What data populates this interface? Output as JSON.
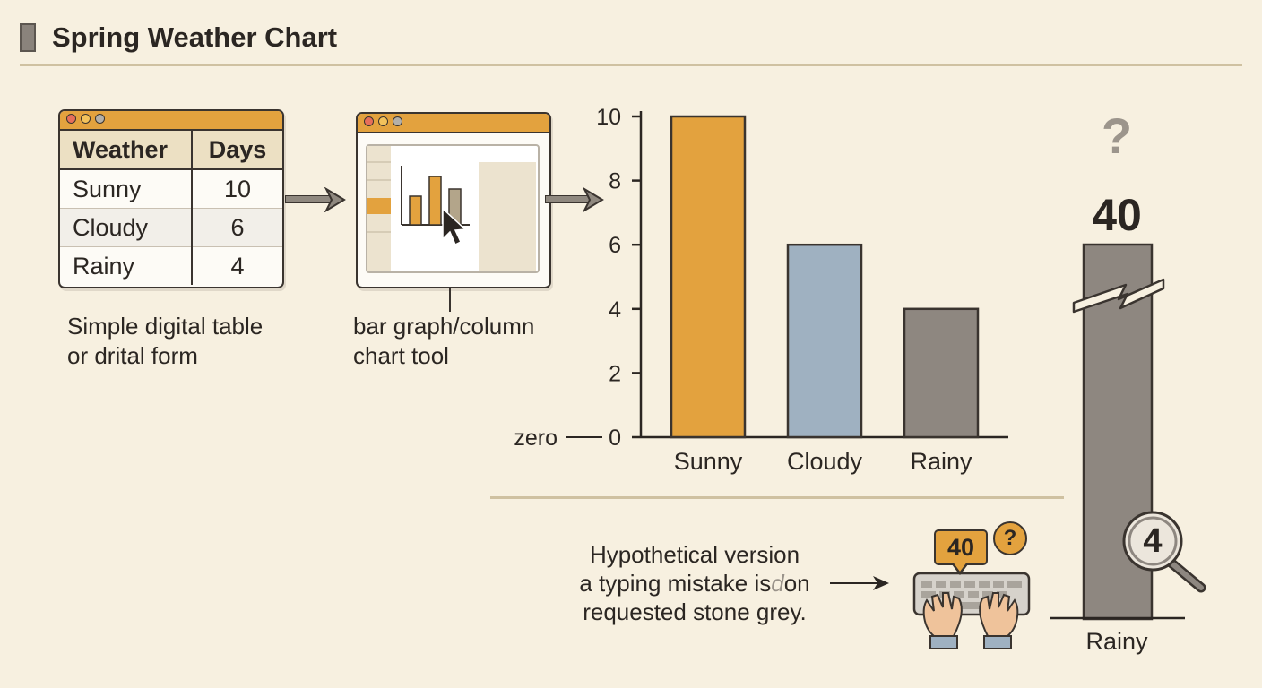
{
  "title": "Spring Weather Chart",
  "table": {
    "headers": [
      "Weather",
      "Days"
    ],
    "rows": [
      {
        "label": "Sunny",
        "value": "10"
      },
      {
        "label": "Cloudy",
        "value": "6"
      },
      {
        "label": "Rainy",
        "value": "4"
      }
    ]
  },
  "captions": {
    "table_line1": "Simple digital table",
    "table_line2": "or drital form",
    "tool_line1": "bar graph/column",
    "tool_line2": "chart tool"
  },
  "colors": {
    "sunny": "#e3a23e",
    "cloudy": "#9fb1c1",
    "rainy": "#8e8780",
    "accent": "#e3a23e"
  },
  "chart_data": {
    "type": "bar",
    "categories": [
      "Sunny",
      "Cloudy",
      "Rainy"
    ],
    "values": [
      10,
      6,
      4
    ],
    "ylim": [
      0,
      10
    ],
    "yticks": [
      "0",
      "2",
      "4",
      "6",
      "8",
      "10"
    ],
    "zero_label": "zero",
    "grid": false,
    "legend": "none"
  },
  "hypothetical": {
    "question_mark": "?",
    "big_value": "40",
    "category": "Rainy",
    "magnifier_value": "4",
    "bubble_value": "40",
    "bubble_question": "?",
    "text_line1": "Hypothetical version",
    "text_line2": "a typing mistake is",
    "text_line2_mid": "d",
    "text_line2_end": "on",
    "text_line3": "requested stone grey."
  }
}
